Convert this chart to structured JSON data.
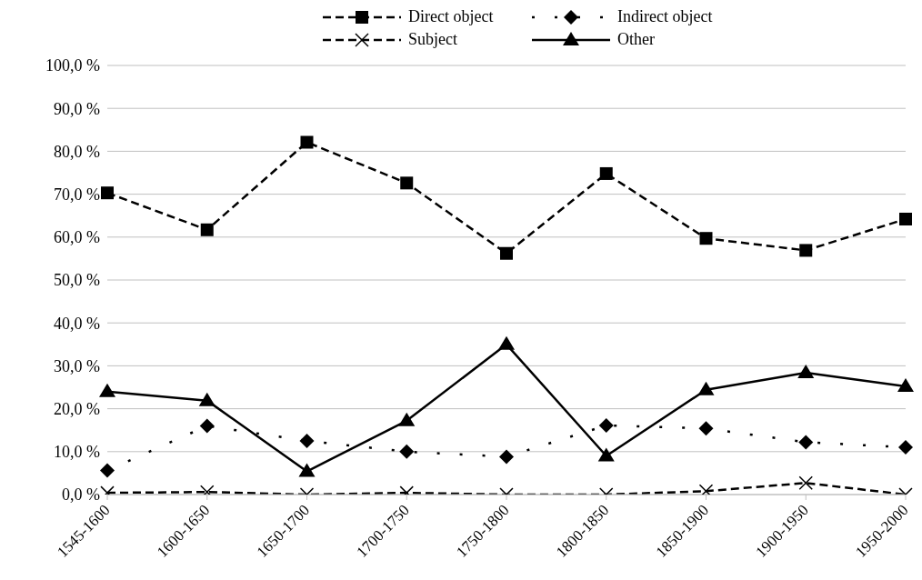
{
  "chart_data": {
    "type": "line",
    "categories": [
      "1545-1600",
      "1600-1650",
      "1650-1700",
      "1700-1750",
      "1750-1800",
      "1800-1850",
      "1850-1900",
      "1900-1950",
      "1950-2000"
    ],
    "series": [
      {
        "name": "Direct object",
        "color": "#000000",
        "marker": "square",
        "line_style": "dashed",
        "values": [
          70.3,
          61.7,
          82.1,
          72.6,
          56.2,
          74.8,
          59.7,
          56.9,
          64.2
        ]
      },
      {
        "name": "Indirect object",
        "color": "#000000",
        "marker": "diamond",
        "line_style": "dotted",
        "values": [
          5.6,
          16.0,
          12.5,
          10.0,
          8.8,
          16.1,
          15.4,
          12.2,
          11.0
        ]
      },
      {
        "name": "Subject",
        "color": "#000000",
        "marker": "cross",
        "line_style": "dashed",
        "values": [
          0.4,
          0.6,
          0.0,
          0.4,
          0.0,
          0.0,
          0.8,
          2.7,
          0.0
        ]
      },
      {
        "name": "Other",
        "color": "#000000",
        "marker": "triangle",
        "line_style": "solid",
        "values": [
          24.0,
          21.9,
          5.4,
          17.2,
          35.0,
          9.0,
          24.4,
          28.4,
          25.2
        ]
      }
    ],
    "ylim": [
      0,
      100
    ],
    "yticks": [
      {
        "value": 0,
        "label": "0,0 %"
      },
      {
        "value": 10,
        "label": "10,0 %"
      },
      {
        "value": 20,
        "label": "20,0 %"
      },
      {
        "value": 30,
        "label": "30,0 %"
      },
      {
        "value": 40,
        "label": "40,0 %"
      },
      {
        "value": 50,
        "label": "50,0 %"
      },
      {
        "value": 60,
        "label": "60,0 %"
      },
      {
        "value": 70,
        "label": "70,0 %"
      },
      {
        "value": 80,
        "label": "80,0 %"
      },
      {
        "value": 90,
        "label": "90,0 %"
      },
      {
        "value": 100,
        "label": "100,0 %"
      }
    ],
    "grid": "y",
    "legend": "top"
  }
}
